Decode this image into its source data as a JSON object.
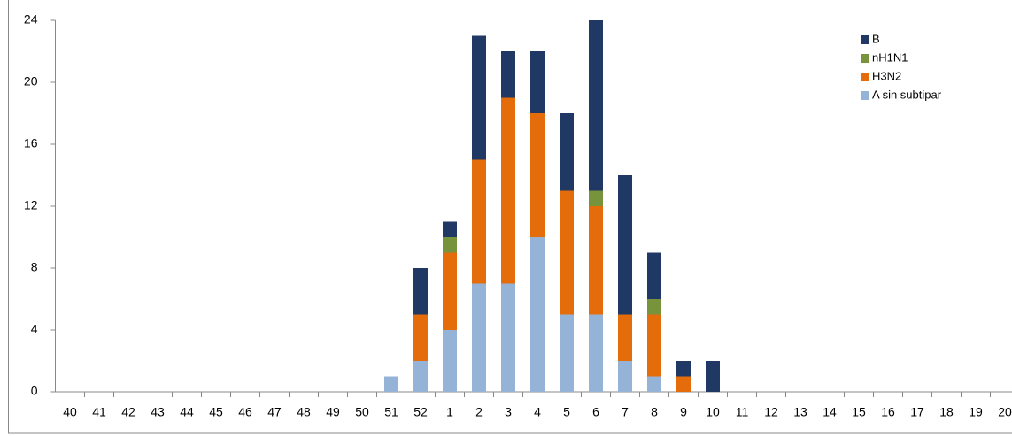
{
  "chart_data": {
    "type": "stacked-bar",
    "categories": [
      "40",
      "41",
      "42",
      "43",
      "44",
      "45",
      "46",
      "47",
      "48",
      "49",
      "50",
      "51",
      "52",
      "1",
      "2",
      "3",
      "4",
      "5",
      "6",
      "7",
      "8",
      "9",
      "10",
      "11",
      "12",
      "13",
      "14",
      "15",
      "16",
      "17",
      "18",
      "19",
      "20"
    ],
    "series": [
      {
        "name": "A sin subtipar",
        "color": "#95b3d7",
        "values": [
          0,
          0,
          0,
          0,
          0,
          0,
          0,
          0,
          0,
          0,
          0,
          1,
          2,
          4,
          7,
          7,
          10,
          5,
          5,
          2,
          1,
          0,
          0,
          0,
          0,
          0,
          0,
          0,
          0,
          0,
          0,
          0,
          0
        ]
      },
      {
        "name": "H3N2",
        "color": "#e46c0a",
        "values": [
          0,
          0,
          0,
          0,
          0,
          0,
          0,
          0,
          0,
          0,
          0,
          0,
          3,
          5,
          8,
          12,
          8,
          8,
          7,
          3,
          4,
          1,
          0,
          0,
          0,
          0,
          0,
          0,
          0,
          0,
          0,
          0,
          0
        ]
      },
      {
        "name": "nH1N1",
        "color": "#77933c",
        "values": [
          0,
          0,
          0,
          0,
          0,
          0,
          0,
          0,
          0,
          0,
          0,
          0,
          0,
          1,
          0,
          0,
          0,
          0,
          1,
          0,
          1,
          0,
          0,
          0,
          0,
          0,
          0,
          0,
          0,
          0,
          0,
          0,
          0
        ]
      },
      {
        "name": "B",
        "color": "#1f3864",
        "values": [
          0,
          0,
          0,
          0,
          0,
          0,
          0,
          0,
          0,
          0,
          0,
          0,
          3,
          1,
          8,
          3,
          4,
          5,
          11,
          9,
          3,
          1,
          2,
          0,
          0,
          0,
          0,
          0,
          0,
          0,
          0,
          0,
          0
        ]
      }
    ],
    "ylim": [
      0,
      24
    ],
    "yticks": [
      0,
      4,
      8,
      12,
      16,
      20,
      24
    ],
    "grid": false,
    "legend": "top-right"
  }
}
